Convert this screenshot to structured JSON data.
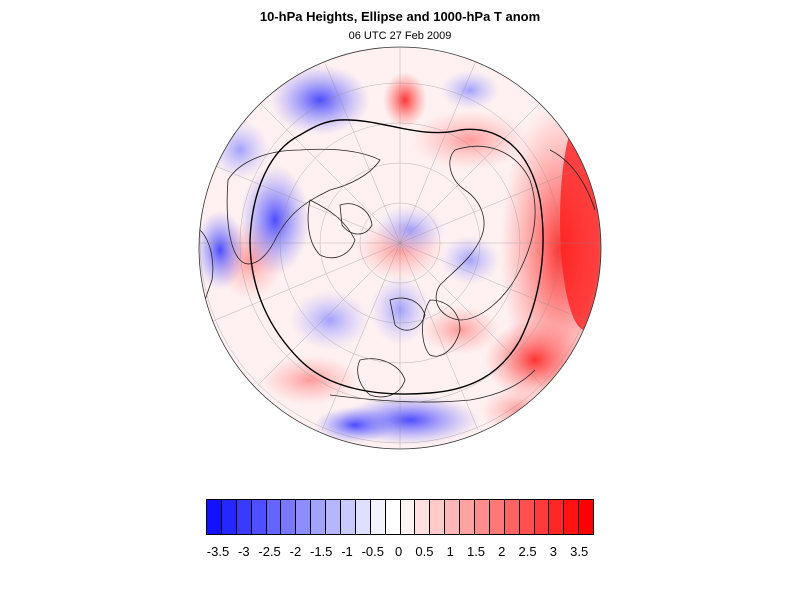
{
  "figure": {
    "title": "10-hPa Heights, Ellipse and 1000-hPa T anom",
    "subtitle": "06 UTC 27 Feb 2009"
  },
  "colorbar": {
    "colors": [
      "#1212ff",
      "#2626ff",
      "#3a3aff",
      "#4f4fff",
      "#6464ff",
      "#7878ff",
      "#8d8dff",
      "#a2a2ff",
      "#b6b6ff",
      "#cacaff",
      "#dfdfff",
      "#f3f3ff",
      "#ffffff",
      "#fff3f3",
      "#ffdfdf",
      "#ffcaca",
      "#ffb6b6",
      "#ffa2a2",
      "#ff8d8d",
      "#ff7878",
      "#ff6464",
      "#ff4f4f",
      "#ff3a3a",
      "#ff2626",
      "#ff1212",
      "#ff0000"
    ],
    "tick_labels": [
      "-3.5",
      "-3",
      "-2.5",
      "-2",
      "-1.5",
      "-1",
      "-0.5",
      "0",
      "0.5",
      "1",
      "1.5",
      "2",
      "2.5",
      "3",
      "3.5"
    ]
  }
}
